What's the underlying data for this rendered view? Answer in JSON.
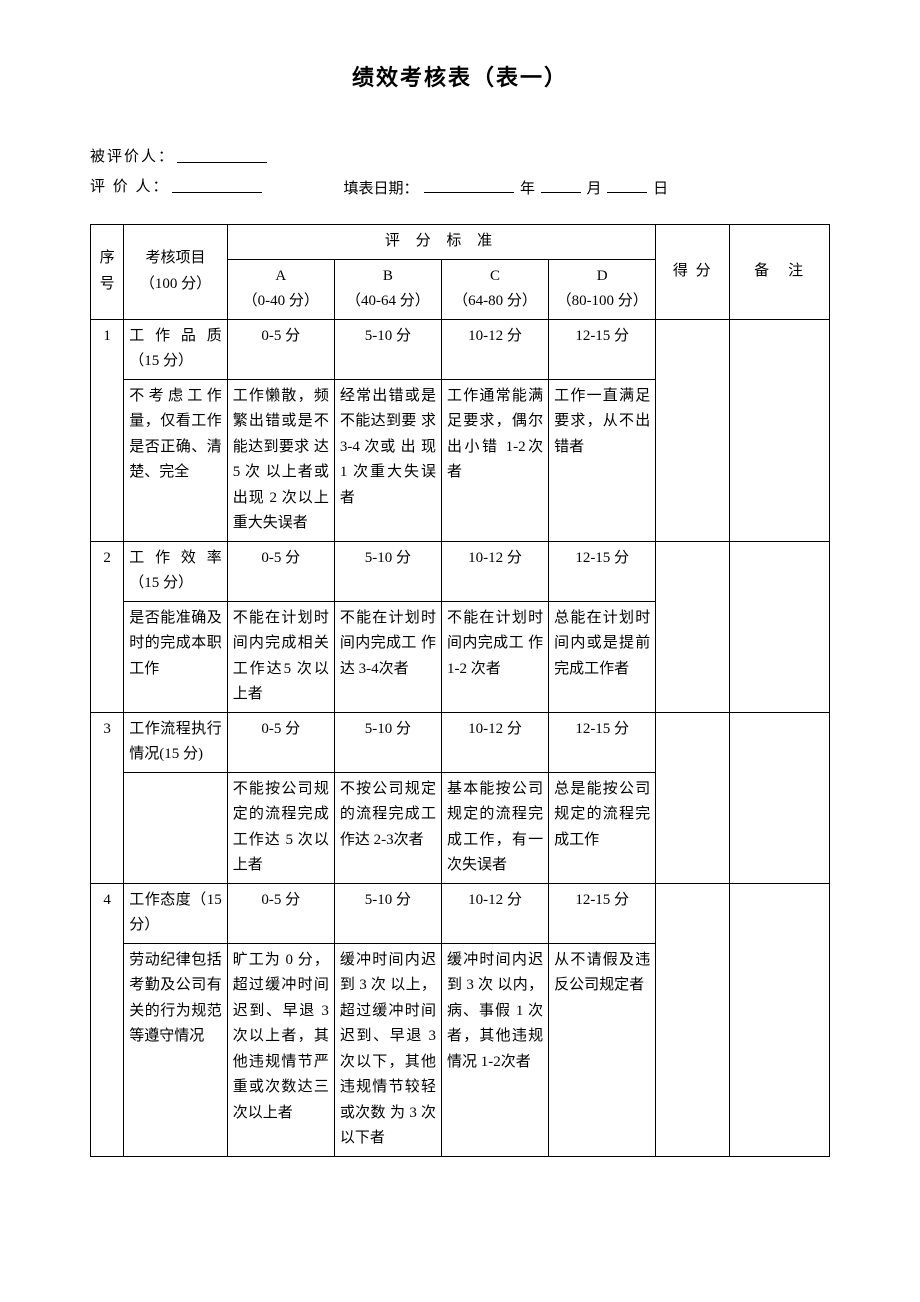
{
  "title": "绩效考核表（表一）",
  "meta": {
    "evaluatee_label": "被评价人：",
    "evaluator_label": "评 价 人：",
    "date_label": "填表日期：",
    "year_suffix": "年",
    "month_suffix": "月",
    "day_suffix": "日"
  },
  "headers": {
    "index": "序号",
    "item": "考核项目（100 分）",
    "criteria": "评 分 标 准",
    "col_a_label": "A",
    "col_a_range": "（0-40 分）",
    "col_b_label": "B",
    "col_b_range": "（40-64 分）",
    "col_c_label": "C",
    "col_c_range": "（64-80 分）",
    "col_d_label": "D",
    "col_d_range": "（80-100 分）",
    "score": "得 分",
    "note": "备　注"
  },
  "rows": [
    {
      "idx": "1",
      "title": "工 作 品 质（15 分）",
      "range_a": "0-5 分",
      "range_b": "5-10 分",
      "range_c": "10-12 分",
      "range_d": "12-15 分",
      "desc": "不考虑工作量，仅看工作是否正确、清楚、完全",
      "crit_a": "工作懒散，频繁出错或是不能达到要求 达 5 次 以上者或出现 2 次以上重大失误者",
      "crit_b": "经常出错或是不能达到要 求 3-4 次或 出 现 1 次重大失误者",
      "crit_c": "工作通常能满足要求，偶尔出小错 1-2次者",
      "crit_d": "工作一直满足要求，从不出错者"
    },
    {
      "idx": "2",
      "title": "工 作 效 率（15 分）",
      "range_a": "0-5 分",
      "range_b": "5-10 分",
      "range_c": "10-12 分",
      "range_d": "12-15 分",
      "desc": "是否能准确及时的完成本职工作",
      "crit_a": "不能在计划时间内完成相关工作达5 次以上者",
      "crit_b": "不能在计划时间内完成工 作 达 3-4次者",
      "crit_c": "不能在计划时间内完成工 作 1-2 次者",
      "crit_d": "总能在计划时间内或是提前完成工作者"
    },
    {
      "idx": "3",
      "title": "工作流程执行情况(15 分)",
      "range_a": "0-5 分",
      "range_b": "5-10 分",
      "range_c": "10-12 分",
      "range_d": "12-15 分",
      "desc": "",
      "crit_a": "不能按公司规定的流程完成工作达 5 次以上者",
      "crit_b": "不按公司规定的流程完成工作达 2-3次者",
      "crit_c": "基本能按公司规定的流程完成工作，有一次失误者",
      "crit_d": "总是能按公司规定的流程完成工作"
    },
    {
      "idx": "4",
      "title": "工作态度（15 分）",
      "range_a": "0-5 分",
      "range_b": "5-10 分",
      "range_c": "10-12 分",
      "range_d": "12-15 分",
      "desc": "劳动纪律包括考勤及公司有关的行为规范等遵守情况",
      "crit_a": "旷工为 0 分，超过缓冲时间迟到、早退 3 次以上者，其他违规情节严重或次数达三次以上者",
      "crit_b": "缓冲时间内迟 到 3 次 以上，超过缓冲时间迟到、早退 3 次以下，其他违规情节较轻或次数 为 3 次 以下者",
      "crit_c": "缓冲时间内迟 到 3 次 以内，病、事假 1 次者，其他违规情况 1-2次者",
      "crit_d": "从不请假及违反公司规定者"
    }
  ],
  "style": {
    "background_color": "#ffffff",
    "border_color": "#000000",
    "text_color": "#000000",
    "font_family": "SimSun",
    "title_fontsize": 22,
    "body_fontsize": 15
  }
}
